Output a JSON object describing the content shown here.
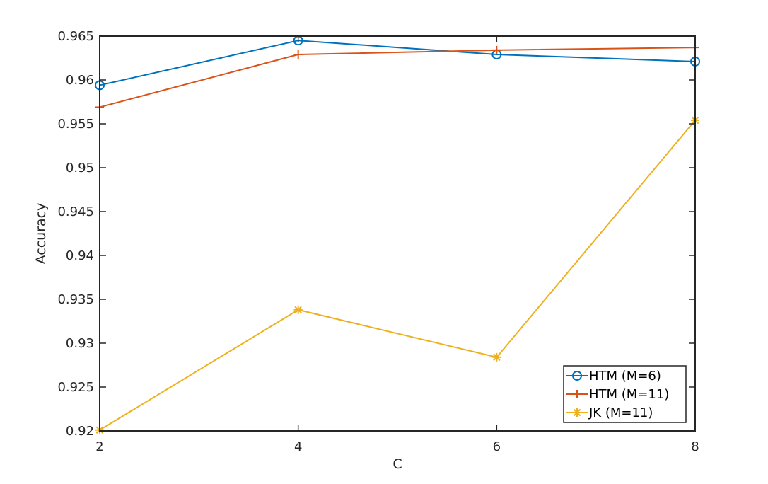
{
  "chart_data": {
    "type": "line",
    "title": "",
    "xlabel": "C",
    "ylabel": "Accuracy",
    "xlim": [
      2,
      8
    ],
    "ylim": [
      0.92,
      0.965
    ],
    "x_ticks": [
      "2",
      "4",
      "6",
      "8"
    ],
    "y_ticks": [
      "0.92",
      "0.925",
      "0.93",
      "0.935",
      "0.94",
      "0.945",
      "0.95",
      "0.955",
      "0.96",
      "0.965"
    ],
    "grid": false,
    "legend_position": "bottom-right",
    "x": [
      2,
      4,
      6,
      8
    ],
    "series": [
      {
        "name": "HTM (M=6)",
        "marker": "circle",
        "color": "#0072BD",
        "values": [
          0.9594,
          0.9645,
          0.9629,
          0.9621
        ]
      },
      {
        "name": "HTM (M=11)",
        "marker": "plus",
        "color": "#D95319",
        "values": [
          0.9569,
          0.9629,
          0.9634,
          0.9637
        ]
      },
      {
        "name": "JK (M=11)",
        "marker": "asterisk",
        "color": "#EDB120",
        "values": [
          0.9201,
          0.9338,
          0.9284,
          0.9554
        ]
      }
    ]
  }
}
